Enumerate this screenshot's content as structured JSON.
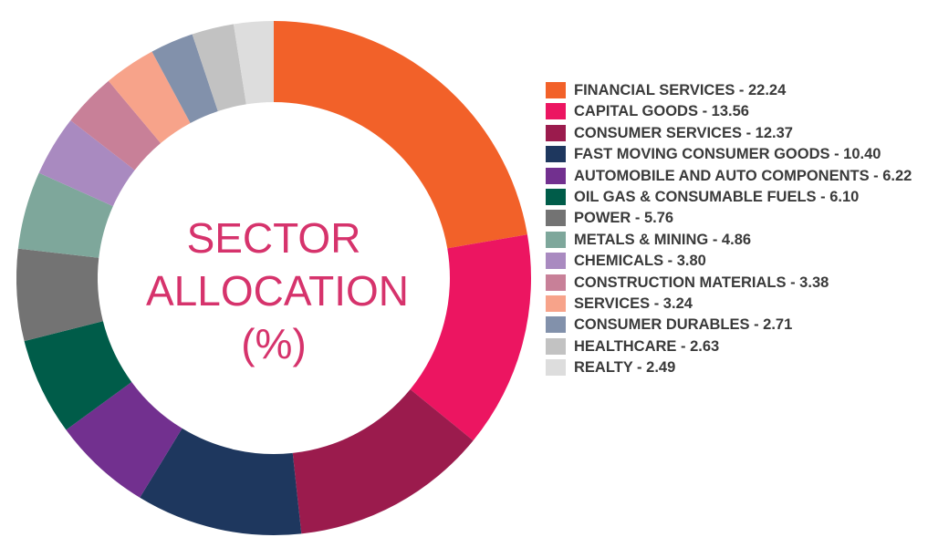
{
  "chart_data": {
    "type": "pie",
    "variant": "donut",
    "title_lines": [
      "SECTOR",
      "ALLOCATION",
      "(%)"
    ],
    "slices": [
      {
        "label": "FINANCIAL SERVICES - 22.24",
        "value": 22.24,
        "color": "#f26129"
      },
      {
        "label": "CAPITAL GOODS - 13.56",
        "value": 13.56,
        "color": "#ec1561"
      },
      {
        "label": "CONSUMER SERVICES - 12.37",
        "value": 12.37,
        "color": "#9b1b4d"
      },
      {
        "label": "FAST MOVING CONSUMER GOODS - 10.40",
        "value": 10.4,
        "color": "#1e375e"
      },
      {
        "label": "AUTOMOBILE AND AUTO COMPONENTS - 6.22",
        "value": 6.22,
        "color": "#72308f"
      },
      {
        "label": "OIL GAS & CONSUMABLE FUELS - 6.10",
        "value": 6.1,
        "color": "#005c49"
      },
      {
        "label": "POWER - 5.76",
        "value": 5.76,
        "color": "#737373"
      },
      {
        "label": "METALS & MINING - 4.86",
        "value": 4.86,
        "color": "#7ea79b"
      },
      {
        "label": "CHEMICALS - 3.80",
        "value": 3.8,
        "color": "#a98ac0"
      },
      {
        "label": "CONSTRUCTION MATERIALS - 3.38",
        "value": 3.38,
        "color": "#c88098"
      },
      {
        "label": "SERVICES - 3.24",
        "value": 3.24,
        "color": "#f7a38a"
      },
      {
        "label": "CONSUMER DURABLES - 2.71",
        "value": 2.71,
        "color": "#8291ab"
      },
      {
        "label": "HEALTHCARE - 2.63",
        "value": 2.63,
        "color": "#c2c2c2"
      },
      {
        "label": "REALTY - 2.49",
        "value": 2.49,
        "color": "#dddddd"
      }
    ],
    "legend": "right",
    "title_color": "#d6336c"
  }
}
